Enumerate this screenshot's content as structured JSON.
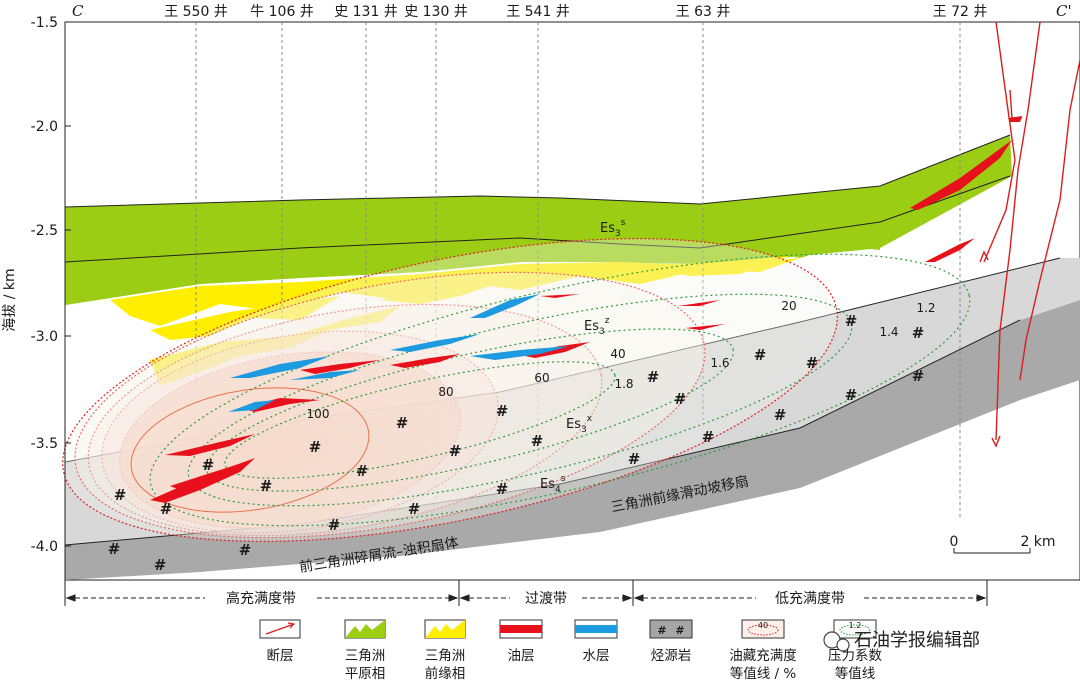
{
  "section": {
    "left_label": "C",
    "right_label": "C'",
    "y_axis_label": "海拔 / km",
    "y_ticks": [
      "-1.5",
      "-2.0",
      "-2.5",
      "-3.0",
      "-3.5",
      "-4.0"
    ]
  },
  "wells": [
    {
      "name": "王 550 井"
    },
    {
      "name": "牛 106 井"
    },
    {
      "name": "史 131 井"
    },
    {
      "name": "史 130 井"
    },
    {
      "name": "王 541 井"
    },
    {
      "name": "王 63 井"
    },
    {
      "name": "王 72 井"
    }
  ],
  "units": {
    "es3s": {
      "base": "Es",
      "sub": "3",
      "sup": "s"
    },
    "es3z": {
      "base": "Es",
      "sub": "3",
      "sup": "z"
    },
    "es3x": {
      "base": "Es",
      "sub": "3",
      "sup": "x"
    },
    "es4s": {
      "base": "Es",
      "sub": "4",
      "sup": "s"
    }
  },
  "fans": {
    "slope_fan": "三角洲前缘滑动坡移扇",
    "turbidite_fan": "前三角洲碎屑流–浊积扇体"
  },
  "fill_contours": [
    "100",
    "80",
    "60",
    "40",
    "20"
  ],
  "pressure_contours": [
    "1.2",
    "1.4",
    "1.6",
    "1.8"
  ],
  "scale_bar": {
    "start": "0",
    "end": "2 km"
  },
  "zones": [
    {
      "label": "高充满度带"
    },
    {
      "label": "过渡带"
    },
    {
      "label": "低充满度带"
    }
  ],
  "legend": [
    {
      "line1": "断层",
      "line2": "",
      "icon": "fault-icon"
    },
    {
      "line1": "三角洲",
      "line2": "平原相",
      "icon": "delta-plain-icon"
    },
    {
      "line1": "三角洲",
      "line2": "前缘相",
      "icon": "delta-front-icon"
    },
    {
      "line1": "油层",
      "line2": "",
      "icon": "oil-layer-icon"
    },
    {
      "line1": "水层",
      "line2": "",
      "icon": "water-layer-icon"
    },
    {
      "line1": "烃源岩",
      "line2": "",
      "icon": "source-rock-icon"
    },
    {
      "line1": "油藏充满度",
      "line2": "等值线 / %",
      "icon": "fill-contour-icon",
      "sample": "40"
    },
    {
      "line1": "压力系数",
      "line2": "等值线",
      "icon": "pressure-contour-icon",
      "sample": "1.2"
    }
  ],
  "watermark": "石油学报编辑部",
  "colors": {
    "delta_plain": "#9acd14",
    "delta_front": "#ffee00",
    "oil": "#e8101a",
    "water": "#1e9be0",
    "source_light": "#d4d4d4",
    "source_dark": "#a6a6a6",
    "fill_contour": "#e02020",
    "pressure_contour": "#2e9a3c",
    "fault": "#d81e1e"
  }
}
